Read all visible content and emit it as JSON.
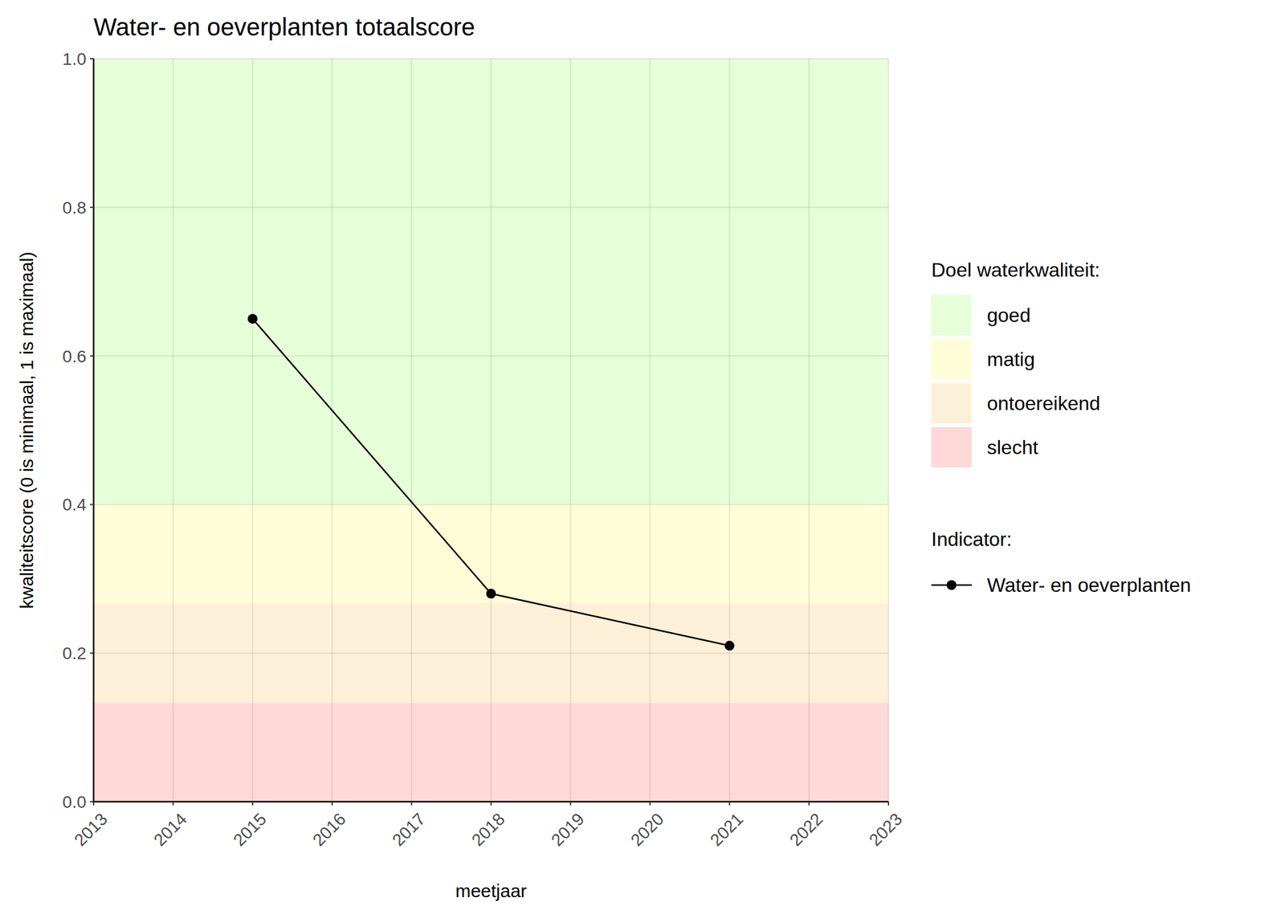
{
  "chart_data": {
    "type": "line",
    "title": "Water- en oeverplanten totaalscore",
    "x_label": "meetjaar",
    "y_label": "kwaliteitscore (0 is minimaal, 1 is maximaal)",
    "x": [
      2015,
      2018,
      2021
    ],
    "series": [
      {
        "name": "Water- en oeverplanten",
        "color": "#000000",
        "marker": "circle",
        "values": [
          0.65,
          0.28,
          0.21
        ]
      }
    ],
    "xlim": [
      2013,
      2023
    ],
    "xticks": [
      2013,
      2014,
      2015,
      2016,
      2017,
      2018,
      2019,
      2020,
      2021,
      2022,
      2023
    ],
    "ylim": [
      0,
      1
    ],
    "yticks": [
      {
        "value": 0,
        "label": "0.0"
      },
      0.2,
      0.4,
      0.6,
      0.8,
      {
        "value": 1,
        "label": "1.0"
      }
    ],
    "grid": true,
    "legend": "right",
    "bands_title": "Doel waterkwaliteit:",
    "series_title": "Indicator:",
    "bands": [
      {
        "name": "goed",
        "from": 0.4,
        "to": 1.0,
        "color": "#e6ffd8"
      },
      {
        "name": "matig",
        "from": 0.267,
        "to": 0.4,
        "color": "#fffdd8"
      },
      {
        "name": "ontoereikend",
        "from": 0.133,
        "to": 0.267,
        "color": "#fdf0d8"
      },
      {
        "name": "slecht",
        "from": 0,
        "to": 0.133,
        "color": "#ffd8d8"
      }
    ]
  }
}
